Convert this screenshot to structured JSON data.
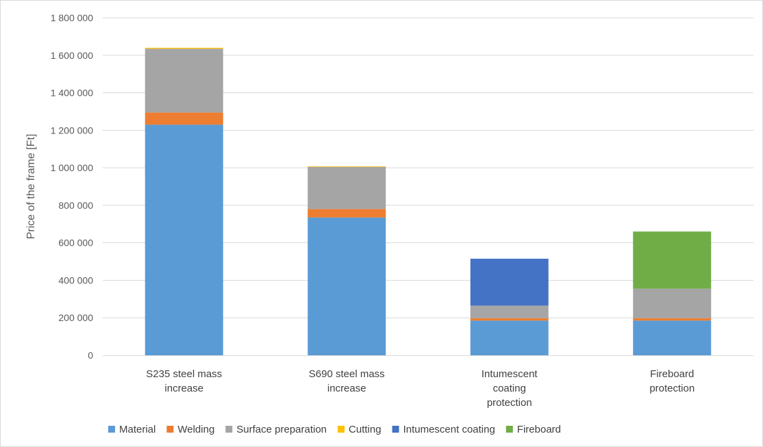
{
  "chart_data": {
    "type": "bar",
    "stacked": true,
    "title": "",
    "xlabel": "",
    "ylabel": "Price of the frame [Ft]",
    "ylim": [
      0,
      1800000
    ],
    "yticks": [
      0,
      200000,
      400000,
      600000,
      800000,
      1000000,
      1200000,
      1400000,
      1600000,
      1800000
    ],
    "ytick_labels": [
      "0",
      "200 000",
      "400 000",
      "600 000",
      "800 000",
      "1 000 000",
      "1 200 000",
      "1 400 000",
      "1 600 000",
      "1 800 000"
    ],
    "grid": "horizontal",
    "legend_position": "bottom",
    "categories": [
      [
        "S235 steel mass",
        "increase"
      ],
      [
        "S690 steel mass",
        "increase"
      ],
      [
        "Intumescent",
        "coating",
        "protection"
      ],
      [
        "Fireboard",
        "protection"
      ]
    ],
    "series": [
      {
        "name": "Material",
        "color": "#5B9BD5",
        "values": [
          1230000,
          735000,
          185000,
          185000
        ]
      },
      {
        "name": "Welding",
        "color": "#ED7D31",
        "values": [
          65000,
          45000,
          13000,
          13000
        ]
      },
      {
        "name": "Surface preparation",
        "color": "#A5A5A5",
        "values": [
          340000,
          225000,
          67000,
          157000
        ]
      },
      {
        "name": "Cutting",
        "color": "#FFC000",
        "values": [
          5000,
          3000,
          0,
          0
        ]
      },
      {
        "name": "Intumescent coating",
        "color": "#4472C4",
        "values": [
          0,
          0,
          250000,
          0
        ]
      },
      {
        "name": "Fireboard",
        "color": "#70AD47",
        "values": [
          0,
          0,
          0,
          305000
        ]
      }
    ]
  }
}
